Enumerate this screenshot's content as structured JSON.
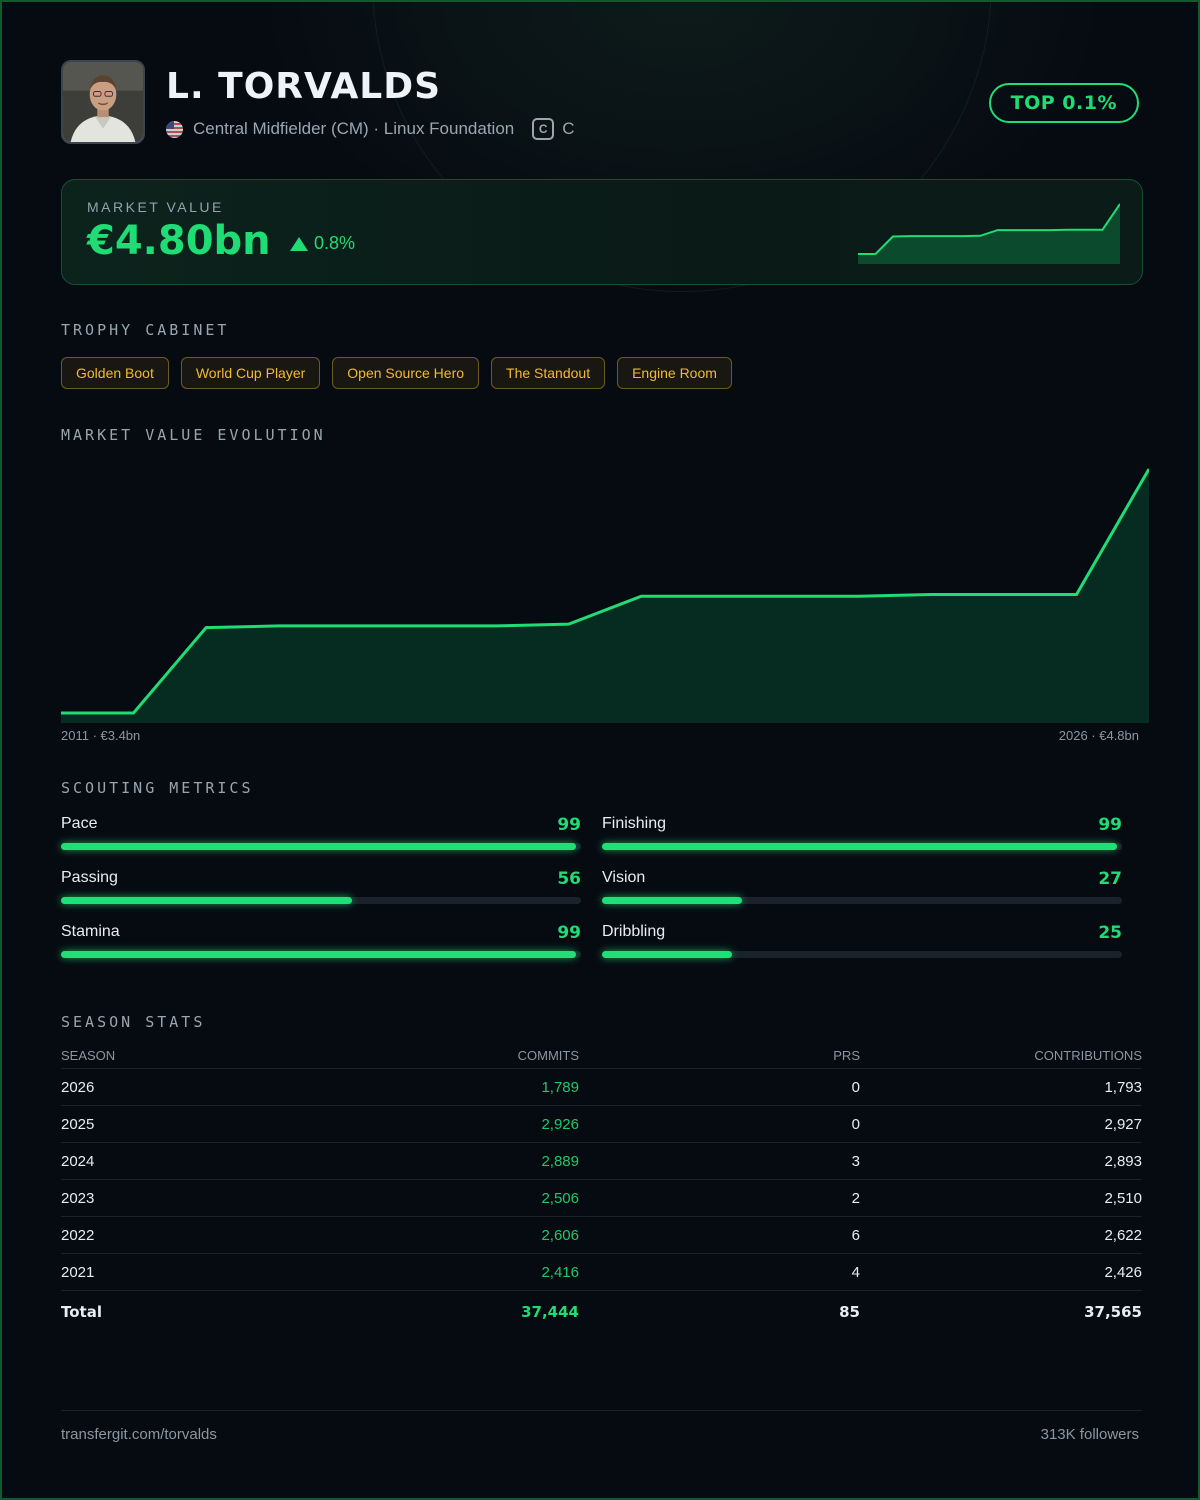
{
  "player": {
    "name": "L. TORVALDS",
    "position": "Central Midfielder (CM) · Linux Foundation",
    "language_icon": "c-language-icon",
    "language": "C",
    "rank_badge": "TOP 0.1%"
  },
  "market_value": {
    "label": "MARKET VALUE",
    "value": "€4.80bn",
    "change": "0.8%",
    "trend": "up"
  },
  "trophies": {
    "title": "TROPHY CABINET",
    "items": [
      "Golden Boot",
      "World Cup Player",
      "Open Source Hero",
      "The Standout",
      "Engine Room"
    ]
  },
  "evolution": {
    "title": "MARKET VALUE EVOLUTION",
    "start_label": "2011 · €3.4bn",
    "end_label": "2026 · €4.8bn"
  },
  "chart_data": {
    "type": "area",
    "x": [
      2011,
      2012,
      2013,
      2014,
      2015,
      2016,
      2017,
      2018,
      2019,
      2020,
      2021,
      2022,
      2023,
      2024,
      2025,
      2026
    ],
    "values": [
      3.4,
      3.4,
      3.89,
      3.9,
      3.9,
      3.9,
      3.9,
      3.91,
      4.07,
      4.07,
      4.07,
      4.07,
      4.08,
      4.08,
      4.08,
      4.8
    ],
    "xlabel": "",
    "ylabel": ""
  },
  "metrics": {
    "title": "SCOUTING METRICS",
    "items": [
      {
        "label": "Pace",
        "value": 99
      },
      {
        "label": "Finishing",
        "value": 99
      },
      {
        "label": "Passing",
        "value": 56
      },
      {
        "label": "Vision",
        "value": 27
      },
      {
        "label": "Stamina",
        "value": 99
      },
      {
        "label": "Dribbling",
        "value": 25
      }
    ]
  },
  "season_stats": {
    "title": "SEASON STATS",
    "columns": [
      "SEASON",
      "COMMITS",
      "PRS",
      "CONTRIBUTIONS"
    ],
    "rows": [
      [
        "2026",
        "1,789",
        "0",
        "1,793"
      ],
      [
        "2025",
        "2,926",
        "0",
        "2,927"
      ],
      [
        "2024",
        "2,889",
        "3",
        "2,893"
      ],
      [
        "2023",
        "2,506",
        "2",
        "2,510"
      ],
      [
        "2022",
        "2,606",
        "6",
        "2,622"
      ],
      [
        "2021",
        "2,416",
        "4",
        "2,426"
      ]
    ],
    "total": [
      "Total",
      "37,444",
      "85",
      "37,565"
    ]
  },
  "footer": {
    "url": "transfergit.com/torvalds",
    "followers": "313K followers"
  },
  "colors": {
    "accent": "#1fdc75",
    "gold": "#f0bb2f",
    "background": "#060b12"
  }
}
